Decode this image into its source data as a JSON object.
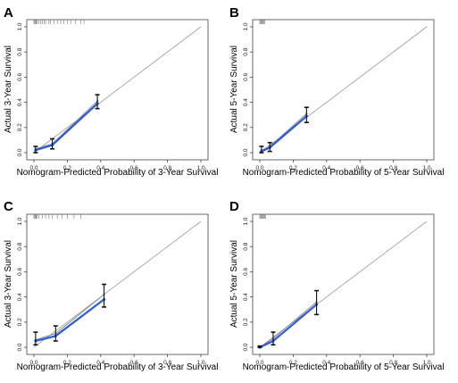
{
  "colors": {
    "frame": "#444444",
    "diagonal": "#9a9a9a",
    "grey_line": "#8c8c8c",
    "calibration_line": "#2e5bd6",
    "error_bar": "#111111",
    "rug": "#777777"
  },
  "chart_data": [
    {
      "panel_label": "A",
      "type": "line",
      "xlabel": "Nomogram-Predicted Probability of 3-Year Survival",
      "ylabel": "Actual 3-Year Survival",
      "xlim": [
        0,
        1
      ],
      "ylim": [
        0,
        1
      ],
      "x_ticks": [
        "0.0",
        "0.2",
        "0.4",
        "0.6",
        "0.8",
        "1.0"
      ],
      "y_ticks": [
        "0.0",
        "0.2",
        "0.4",
        "0.6",
        "0.8",
        "1.0"
      ],
      "reference_line": [
        [
          0,
          0
        ],
        [
          1,
          1
        ]
      ],
      "series": [
        {
          "role": "apparent",
          "x": [
            0.01,
            0.11,
            0.38
          ],
          "y": [
            0.03,
            0.07,
            0.41
          ]
        },
        {
          "role": "calibrated",
          "x": [
            0.01,
            0.11,
            0.38
          ],
          "y": [
            0.02,
            0.06,
            0.39
          ]
        }
      ],
      "error_bars": {
        "x": [
          0.01,
          0.11,
          0.38
        ],
        "low": [
          0.0,
          0.03,
          0.35
        ],
        "high": [
          0.05,
          0.11,
          0.46
        ]
      },
      "rug": [
        0.0,
        0.005,
        0.01,
        0.015,
        0.02,
        0.03,
        0.04,
        0.05,
        0.06,
        0.07,
        0.09,
        0.1,
        0.12,
        0.14,
        0.16,
        0.18,
        0.2,
        0.22,
        0.25,
        0.28,
        0.3
      ]
    },
    {
      "panel_label": "B",
      "type": "line",
      "xlabel": "Nomogram-Predicted Probability of 5-Year Survival",
      "ylabel": "Actual 5-Year Survival",
      "xlim": [
        0,
        1
      ],
      "ylim": [
        0,
        1
      ],
      "x_ticks": [
        "0.0",
        "0.2",
        "0.4",
        "0.6",
        "0.8",
        "1.0"
      ],
      "y_ticks": [
        "0.0",
        "0.2",
        "0.4",
        "0.6",
        "0.8",
        "1.0"
      ],
      "reference_line": [
        [
          0,
          0
        ],
        [
          1,
          1
        ]
      ],
      "series": [
        {
          "role": "apparent",
          "x": [
            0.01,
            0.06,
            0.28
          ],
          "y": [
            0.02,
            0.05,
            0.31
          ]
        },
        {
          "role": "calibrated",
          "x": [
            0.01,
            0.06,
            0.28
          ],
          "y": [
            0.01,
            0.04,
            0.29
          ]
        }
      ],
      "error_bars": {
        "x": [
          0.01,
          0.06,
          0.28
        ],
        "low": [
          0.0,
          0.01,
          0.24
        ],
        "high": [
          0.05,
          0.08,
          0.36
        ]
      },
      "rug": [
        0.0,
        0.005,
        0.01,
        0.015,
        0.02,
        0.025,
        0.03
      ]
    },
    {
      "panel_label": "C",
      "type": "line",
      "xlabel": "Nomogram-Predicted Probability of 3-Year Survival",
      "ylabel": "Actual 3-Year Survival",
      "xlim": [
        0,
        1
      ],
      "ylim": [
        0,
        1
      ],
      "x_ticks": [
        "0.0",
        "0.2",
        "0.4",
        "0.6",
        "0.8",
        "1.0"
      ],
      "y_ticks": [
        "0.0",
        "0.2",
        "0.4",
        "0.6",
        "0.8",
        "1.0"
      ],
      "reference_line": [
        [
          0,
          0
        ],
        [
          1,
          1
        ]
      ],
      "series": [
        {
          "role": "apparent",
          "x": [
            0.01,
            0.13,
            0.42
          ],
          "y": [
            0.06,
            0.11,
            0.42
          ]
        },
        {
          "role": "calibrated",
          "x": [
            0.01,
            0.13,
            0.42
          ],
          "y": [
            0.05,
            0.09,
            0.38
          ]
        }
      ],
      "error_bars": {
        "x": [
          0.01,
          0.13,
          0.42
        ],
        "low": [
          0.02,
          0.05,
          0.32
        ],
        "high": [
          0.12,
          0.17,
          0.5
        ]
      },
      "rug": [
        0.0,
        0.005,
        0.01,
        0.015,
        0.02,
        0.03,
        0.05,
        0.07,
        0.09,
        0.11,
        0.14,
        0.17,
        0.2,
        0.24,
        0.28
      ]
    },
    {
      "panel_label": "D",
      "type": "line",
      "xlabel": "Nomogram-Predicted Probability of 5-Year Survival",
      "ylabel": "Actual 5-Year Survival",
      "xlim": [
        0,
        1
      ],
      "ylim": [
        0,
        1
      ],
      "x_ticks": [
        "0.0",
        "0.2",
        "0.4",
        "0.6",
        "0.8",
        "1.0"
      ],
      "y_ticks": [
        "0.0",
        "0.2",
        "0.4",
        "0.6",
        "0.8",
        "1.0"
      ],
      "reference_line": [
        [
          0,
          0
        ],
        [
          1,
          1
        ]
      ],
      "series": [
        {
          "role": "apparent",
          "x": [
            0.0,
            0.08,
            0.34
          ],
          "y": [
            0.0,
            0.07,
            0.36
          ]
        },
        {
          "role": "calibrated",
          "x": [
            0.0,
            0.08,
            0.34
          ],
          "y": [
            0.0,
            0.05,
            0.34
          ]
        }
      ],
      "error_bars": {
        "x": [
          0.0,
          0.08,
          0.34
        ],
        "low": [
          0.0,
          0.02,
          0.26
        ],
        "high": [
          0.01,
          0.12,
          0.45
        ]
      },
      "rug": [
        0.0,
        0.005,
        0.01,
        0.015,
        0.02,
        0.025,
        0.03,
        0.035
      ]
    }
  ]
}
